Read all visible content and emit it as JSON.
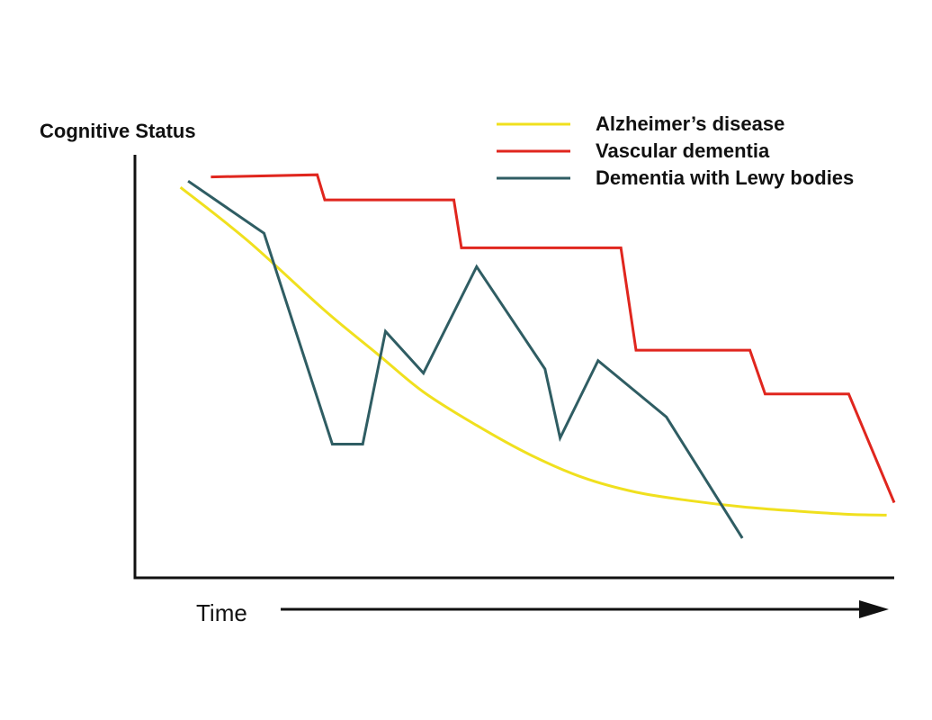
{
  "chart_data": {
    "type": "line",
    "ylabel": "Cognitive Status",
    "xlabel": "Time",
    "xlim": [
      0,
      100
    ],
    "ylim": [
      0,
      100
    ],
    "grid": false,
    "legend_position": "top-right",
    "series": [
      {
        "name": "Alzheimer’s disease",
        "color": "#f0e01e",
        "smooth": true,
        "points": [
          [
            6,
            93.5
          ],
          [
            15,
            80.5
          ],
          [
            25,
            64
          ],
          [
            32,
            53.5
          ],
          [
            38,
            44.5
          ],
          [
            45,
            36.5
          ],
          [
            52,
            29.5
          ],
          [
            59,
            24
          ],
          [
            66,
            20.5
          ],
          [
            73,
            18.5
          ],
          [
            80,
            17
          ],
          [
            87,
            16
          ],
          [
            94,
            15.2
          ],
          [
            99,
            15
          ]
        ]
      },
      {
        "name": "Vascular dementia",
        "color": "#e0261e",
        "smooth": false,
        "points": [
          [
            10,
            96
          ],
          [
            24,
            96.5
          ],
          [
            25,
            90.5
          ],
          [
            42,
            90.5
          ],
          [
            43,
            79
          ],
          [
            64,
            79
          ],
          [
            66,
            54.5
          ],
          [
            81,
            54.5
          ],
          [
            83,
            44
          ],
          [
            94,
            44
          ],
          [
            100,
            18
          ]
        ]
      },
      {
        "name": "Dementia with Lewy bodies",
        "color": "#2f5d63",
        "smooth": false,
        "points": [
          [
            7,
            95
          ],
          [
            17,
            82.5
          ],
          [
            26,
            32
          ],
          [
            30,
            32
          ],
          [
            33,
            59
          ],
          [
            38,
            49
          ],
          [
            45,
            74.5
          ],
          [
            54,
            50
          ],
          [
            56,
            33.5
          ],
          [
            61,
            52
          ],
          [
            70,
            38.5
          ],
          [
            80,
            9.5
          ]
        ]
      }
    ]
  }
}
